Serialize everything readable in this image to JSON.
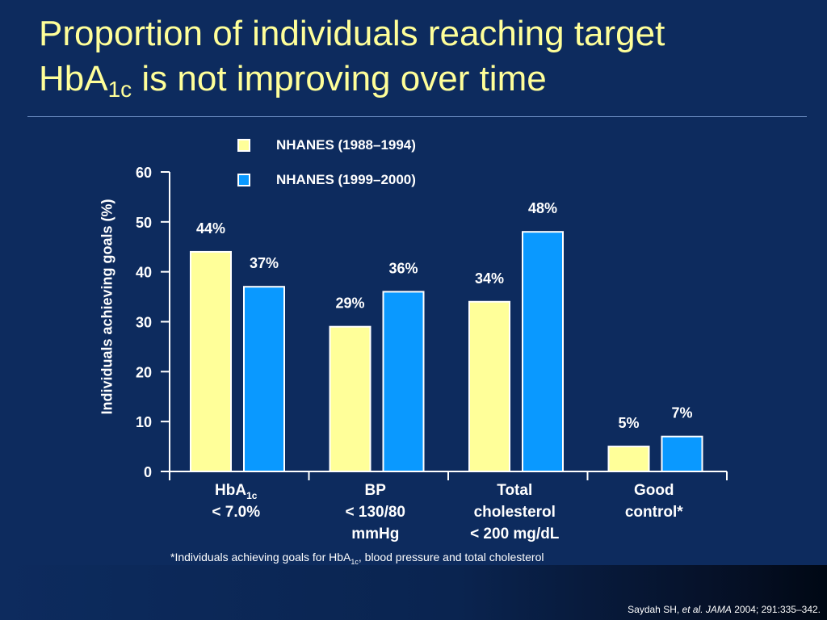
{
  "title": {
    "line1": "Proportion of individuals reaching target",
    "line2_main": "HbA",
    "line2_sub": "1c",
    "line2_rest": " is not improving over time"
  },
  "colors": {
    "background": "#0d2b5e",
    "title": "#ffff99",
    "series1": "#ffff99",
    "series2": "#0a99ff",
    "text": "#ffffff"
  },
  "chart_data": {
    "type": "bar",
    "ylabel": "Individuals achieving goals (%)",
    "xlabel": "",
    "ylim": [
      0,
      60
    ],
    "yticks": [
      0,
      10,
      20,
      30,
      40,
      50,
      60
    ],
    "grid": false,
    "legend_position": "top",
    "categories": [
      {
        "lines": [
          "HbA",
          "< 7.0%"
        ],
        "sub": "1c"
      },
      {
        "lines": [
          "BP",
          "< 130/80",
          "mmHg"
        ]
      },
      {
        "lines": [
          "Total",
          "cholesterol",
          "< 200 mg/dL"
        ]
      },
      {
        "lines": [
          "Good",
          "control*"
        ]
      }
    ],
    "series": [
      {
        "name": "NHANES (1988–1994)",
        "values": [
          44,
          29,
          34,
          5
        ],
        "labels": [
          "44%",
          "29%",
          "34%",
          "5%"
        ]
      },
      {
        "name": "NHANES (1999–2000)",
        "values": [
          37,
          36,
          48,
          7
        ],
        "labels": [
          "37%",
          "36%",
          "48%",
          "7%"
        ]
      }
    ]
  },
  "footnote": {
    "pre": "*Individuals achieving goals for HbA",
    "sub": "1c",
    "post": ", blood pressure and total cholesterol"
  },
  "citation": {
    "pre": "Saydah SH, ",
    "italic": "et al. JAMA",
    "post": " 2004; 291:335–342."
  }
}
